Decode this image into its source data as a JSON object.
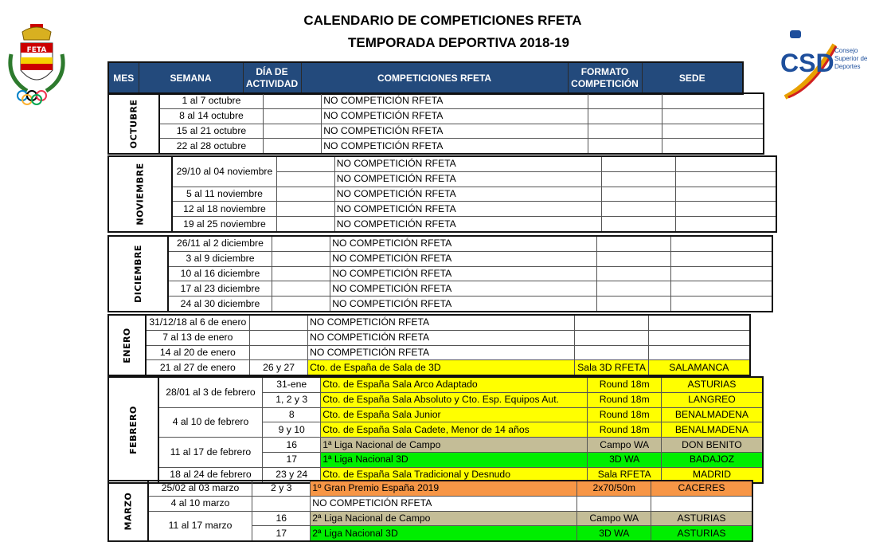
{
  "header": {
    "title_line1": "CALENDARIO DE COMPETICIONES RFETA",
    "title_line2": "TEMPORADA DEPORTIVA 2018-19",
    "logo_left_text": "FETA",
    "logo_right_text": "CSD Consejo Superior de Deportes"
  },
  "colors": {
    "header_bg": "#234a7c",
    "yellow": "#ffff00",
    "tan": "#c4bd97",
    "green": "#00ee00",
    "orange": "#f79646"
  },
  "columns": [
    "MES",
    "SEMANA",
    "DÍA DE ACTIVIDAD",
    "COMPETICIONES RFETA",
    "FORMATO COMPETICIÓN",
    "SEDE"
  ],
  "months": [
    {
      "name": "OCTUBRE",
      "rows": [
        {
          "semana": "1 al 7 octubre",
          "span": 1,
          "dia": "",
          "comp": "NO COMPETICIÓN RFETA",
          "formato": "",
          "sede": "",
          "color": ""
        },
        {
          "semana": "8 al 14 octubre",
          "span": 1,
          "dia": "",
          "comp": "NO COMPETICIÓN RFETA",
          "formato": "",
          "sede": "",
          "color": ""
        },
        {
          "semana": "15 al 21 octubre",
          "span": 1,
          "dia": "",
          "comp": "NO COMPETICIÓN RFETA",
          "formato": "",
          "sede": "",
          "color": ""
        },
        {
          "semana": "22 al 28 octubre",
          "span": 1,
          "dia": "",
          "comp": "NO COMPETICIÓN RFETA",
          "formato": "",
          "sede": "",
          "color": ""
        }
      ]
    },
    {
      "name": "NOVIEMBRE",
      "rows": [
        {
          "semana": "29/10 al 04 noviembre",
          "span": 2,
          "dia": "",
          "comp": "NO COMPETICIÓN RFETA",
          "formato": "",
          "sede": "",
          "color": ""
        },
        {
          "semana": null,
          "span": 0,
          "dia": "",
          "comp": "NO COMPETICIÓN RFETA",
          "formato": "",
          "sede": "",
          "color": ""
        },
        {
          "semana": "5 al 11 noviembre",
          "span": 1,
          "dia": "",
          "comp": "NO COMPETICIÓN RFETA",
          "formato": "",
          "sede": "",
          "color": ""
        },
        {
          "semana": "12 al 18 noviembre",
          "span": 1,
          "dia": "",
          "comp": "NO COMPETICIÓN RFETA",
          "formato": "",
          "sede": "",
          "color": ""
        },
        {
          "semana": "19 al 25 noviembre",
          "span": 1,
          "dia": "",
          "comp": "NO COMPETICIÓN RFETA",
          "formato": "",
          "sede": "",
          "color": ""
        }
      ]
    },
    {
      "name": "DICIEMBRE",
      "rows": [
        {
          "semana": "26/11 al 2 diciembre",
          "span": 1,
          "dia": "",
          "comp": "NO COMPETICIÓN RFETA",
          "formato": "",
          "sede": "",
          "color": ""
        },
        {
          "semana": "3 al 9 diciembre",
          "span": 1,
          "dia": "",
          "comp": "NO COMPETICIÓN RFETA",
          "formato": "",
          "sede": "",
          "color": ""
        },
        {
          "semana": "10 al 16 diciembre",
          "span": 1,
          "dia": "",
          "comp": "NO COMPETICIÓN RFETA",
          "formato": "",
          "sede": "",
          "color": ""
        },
        {
          "semana": "17 al 23 diciembre",
          "span": 1,
          "dia": "",
          "comp": "NO COMPETICIÓN RFETA",
          "formato": "",
          "sede": "",
          "color": ""
        },
        {
          "semana": "24 al 30 diciembre",
          "span": 1,
          "dia": "",
          "comp": "NO COMPETICIÓN RFETA",
          "formato": "",
          "sede": "",
          "color": ""
        }
      ]
    },
    {
      "name": "ENERO",
      "rows": [
        {
          "semana": "31/12/18 al 6 de enero",
          "span": 1,
          "dia": "",
          "comp": "NO COMPETICIÓN RFETA",
          "formato": "",
          "sede": "",
          "color": ""
        },
        {
          "semana": "7 al 13 de enero",
          "span": 1,
          "dia": "",
          "comp": "NO COMPETICIÓN RFETA",
          "formato": "",
          "sede": "",
          "color": ""
        },
        {
          "semana": "14 al 20 de enero",
          "span": 1,
          "dia": "",
          "comp": "NO COMPETICIÓN RFETA",
          "formato": "",
          "sede": "",
          "color": ""
        },
        {
          "semana": "21 al 27 de enero",
          "span": 1,
          "dia": "26 y 27",
          "comp": "Cto. de España de Sala de 3D",
          "formato": "Sala 3D RFETA",
          "sede": "SALAMANCA",
          "color": "yellow"
        }
      ]
    },
    {
      "name": "FEBRERO",
      "rows": [
        {
          "semana": "28/01 al 3 de febrero",
          "span": 2,
          "dia": "31-ene",
          "comp": "Cto. de España Sala Arco Adaptado",
          "formato": "Round 18m",
          "sede": "ASTURIAS",
          "color": "yellow"
        },
        {
          "semana": null,
          "span": 0,
          "dia": "1, 2 y 3",
          "comp": "Cto. de España Sala Absoluto y Cto. Esp. Equipos Aut.",
          "formato": "Round 18m",
          "sede": "LANGREO",
          "color": "yellow"
        },
        {
          "semana": "4 al 10 de febrero",
          "span": 2,
          "dia": "8",
          "comp": "Cto. de España Sala Junior",
          "formato": "Round 18m",
          "sede": "BENALMADENA",
          "color": "yellow"
        },
        {
          "semana": null,
          "span": 0,
          "dia": "9 y 10",
          "comp": "Cto. de España Sala Cadete, Menor de 14 años",
          "formato": "Round 18m",
          "sede": "BENALMADENA",
          "color": "yellow"
        },
        {
          "semana": "11 al 17 de febrero",
          "span": 2,
          "dia": "16",
          "comp": "1ª Liga Nacional de Campo",
          "formato": "Campo WA",
          "sede": "DON BENITO",
          "color": "tan"
        },
        {
          "semana": null,
          "span": 0,
          "dia": "17",
          "comp": "1ª Liga  Nacional 3D",
          "formato": "3D WA",
          "sede": "BADAJOZ",
          "color": "green"
        },
        {
          "semana": "18 al 24 de febrero",
          "span": 1,
          "dia": "23 y 24",
          "comp": "Cto. de España Sala Tradicional y Desnudo",
          "formato": "Sala RFETA",
          "sede": "MADRID",
          "color": "yellow"
        }
      ]
    },
    {
      "name": "MARZO",
      "rows": [
        {
          "semana": "25/02 al 03 marzo",
          "span": 1,
          "dia": "2 y 3",
          "comp": "1º Gran Premio España 2019",
          "formato": "2x70/50m",
          "sede": "CACERES",
          "color": "orange"
        },
        {
          "semana": "4 al 10 marzo",
          "span": 1,
          "dia": "",
          "comp": "NO COMPETICIÓN RFETA",
          "formato": "",
          "sede": "",
          "color": ""
        },
        {
          "semana": "11 al 17 marzo",
          "span": 2,
          "dia": "16",
          "comp": "2ª Liga Nacional de Campo",
          "formato": "Campo WA",
          "sede": "ASTURIAS",
          "color": "tan"
        },
        {
          "semana": null,
          "span": 0,
          "dia": "17",
          "comp": "2ª Liga Nacional 3D",
          "formato": "3D WA",
          "sede": "ASTURIAS",
          "color": "green"
        }
      ]
    }
  ]
}
